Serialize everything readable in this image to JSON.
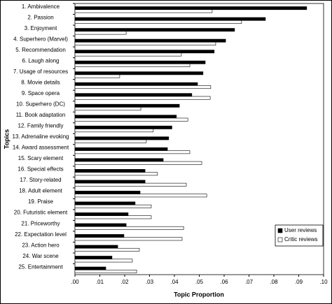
{
  "chart_data": {
    "type": "hbar",
    "xlabel": "Topic Proportion",
    "ylabel": "Topics",
    "categories": [
      "1. Ambivalence",
      "2. Passion",
      "3. Enjoyment",
      "4. Superhero (Marvel)",
      "5. Recommendation",
      "6. Laugh along",
      "7. Usage of resources",
      "8. Movie details",
      "9. Space opera",
      "10. Superhero (DC)",
      "11. Book adaptation",
      "12. Family friendly",
      "13. Adrenaline evoking",
      "14. Award assessment",
      "15. Scary element",
      "16. Special effects",
      "17. Story-related",
      "18. Adult element",
      "19. Praise",
      "20. Futuristic element",
      "21. Priceworthy",
      "22. Expectation level",
      "23. Action hero",
      "24. War scene",
      "25. Entertainment"
    ],
    "series": [
      {
        "name": "User reviews",
        "color": "#000000",
        "values": [
          0.0932,
          0.0766,
          0.0642,
          0.0606,
          0.056,
          0.0524,
          0.0515,
          0.0493,
          0.047,
          0.042,
          0.0408,
          0.039,
          0.0377,
          0.0372,
          0.0355,
          0.0282,
          0.0282,
          0.0262,
          0.0242,
          0.0214,
          0.0206,
          0.0197,
          0.0172,
          0.0149,
          0.0124
        ]
      },
      {
        "name": "Critic reviews",
        "color": "#ffffff",
        "values": [
          0.0552,
          0.067,
          0.0206,
          0.0566,
          0.0428,
          0.0462,
          0.018,
          0.0546,
          0.0544,
          0.0265,
          0.0454,
          0.0315,
          0.0287,
          0.0462,
          0.051,
          0.0332,
          0.0448,
          0.053,
          0.0307,
          0.0307,
          0.0437,
          0.0431,
          0.0259,
          0.0231,
          0.0248
        ]
      }
    ],
    "xlim": [
      0,
      0.1
    ],
    "xticks": [
      {
        "value": 0,
        "label": ".00"
      },
      {
        "value": 0.01,
        "label": ".01"
      },
      {
        "value": 0.02,
        "label": ".02"
      },
      {
        "value": 0.03,
        "label": ".03"
      },
      {
        "value": 0.04,
        "label": ".04"
      },
      {
        "value": 0.05,
        "label": ".05"
      },
      {
        "value": 0.06,
        "label": ".06"
      },
      {
        "value": 0.07,
        "label": ".07"
      },
      {
        "value": 0.08,
        "label": ".08"
      },
      {
        "value": 0.09,
        "label": ".09"
      },
      {
        "value": 0.1,
        "label": ".10"
      }
    ],
    "legend": "lower right"
  }
}
